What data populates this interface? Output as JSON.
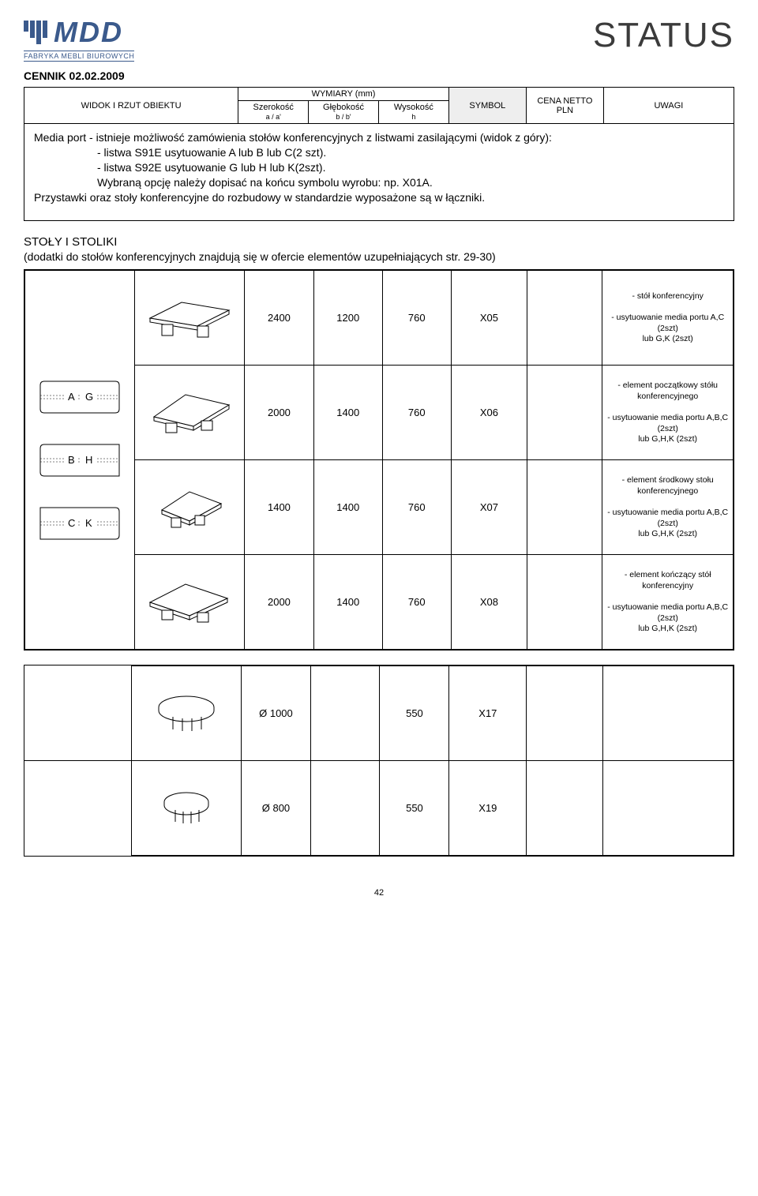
{
  "header": {
    "logo_text": "MDD",
    "logo_sub": "FABRYKA MEBLI BIUROWYCH",
    "status": "STATUS",
    "cennik": "CENNIK 02.02.2009"
  },
  "columns": {
    "widok": "WIDOK I RZUT OBIEKTU",
    "wymiary": "WYMIARY (mm)",
    "szer": "Szerokość",
    "szer_sub": "a / a'",
    "gleb": "Głębokość",
    "gleb_sub": "b / b'",
    "wys": "Wysokość",
    "wys_sub": "h",
    "symbol": "SYMBOL",
    "cena": "CENA NETTO PLN",
    "uwagi": "UWAGI"
  },
  "notes": {
    "l1": "Media port - istnieje możliwość zamówienia stołów konferencyjnych z listwami zasilającymi  (widok z góry):",
    "l2": "- listwa S91E usytuowanie A lub B lub C(2 szt).",
    "l3": "- listwa S92E usytuowanie G lub H lub K(2szt).",
    "l4": "Wybraną opcję należy dopisać na końcu symbolu wyrobu: np. X01A.",
    "l5": "Przystawki oraz stoły konferencyjne do rozbudowy w standardzie wyposażone są w łączniki."
  },
  "section1": {
    "title": "STOŁY I STOLIKI",
    "sub": "(dodatki do stołów konferencyjnych znajdują się w ofercie elementów uzupełniających str. 29-30)"
  },
  "diagram_labels": {
    "a": "A",
    "g": "G",
    "b": "B",
    "h": "H",
    "c": "C",
    "k": "K"
  },
  "rows": [
    {
      "w": "2400",
      "d": "1200",
      "h": "760",
      "sym": "X05",
      "note": "- stół konferencyjny\n\n- usytuowanie media portu A,C (2szt)\nlub G,K (2szt)"
    },
    {
      "w": "2000",
      "d": "1400",
      "h": "760",
      "sym": "X06",
      "note": "- element początkowy stółu konferencyjnego\n\n- usytuowanie media portu A,B,C (2szt)\nlub G,H,K (2szt)"
    },
    {
      "w": "1400",
      "d": "1400",
      "h": "760",
      "sym": "X07",
      "note": "- element środkowy stołu konferencyjnego\n\n- usytuowanie media portu A,B,C (2szt)\nlub G,H,K (2szt)"
    },
    {
      "w": "2000",
      "d": "1400",
      "h": "760",
      "sym": "X08",
      "note": "- element kończący stół konferencyjny\n\n- usytuowanie media portu A,B,C (2szt)\nlub G,H,K (2szt)"
    }
  ],
  "rows2": [
    {
      "w": "Ø 1000",
      "d": "",
      "h": "550",
      "sym": "X17"
    },
    {
      "w": "Ø 800",
      "d": "",
      "h": "550",
      "sym": "X19"
    }
  ],
  "page": "42",
  "colors": {
    "brand": "#3b5a8c",
    "border": "#000000",
    "shade": "#eeeeee"
  }
}
